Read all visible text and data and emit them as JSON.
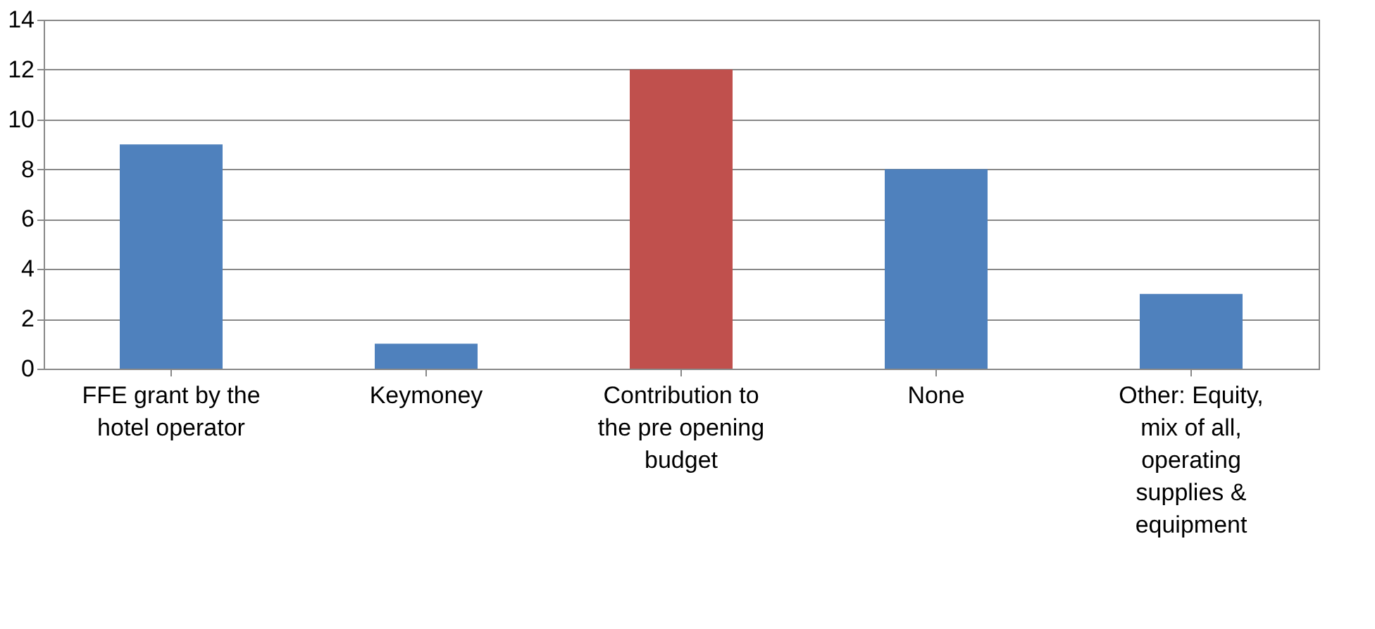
{
  "chart_data": {
    "type": "bar",
    "categories": [
      "FFE grant by the hotel operator",
      "Keymoney",
      "Contribution to the pre opening budget",
      "None",
      "Other: Equity, mix of all, operating supplies & equipment"
    ],
    "values": [
      9,
      1,
      12,
      8,
      3
    ],
    "colors": [
      "#4f81bd",
      "#4f81bd",
      "#c0504d",
      "#4f81bd",
      "#4f81bd"
    ],
    "ylim": [
      0,
      14
    ],
    "yticks": [
      0,
      2,
      4,
      6,
      8,
      10,
      12,
      14
    ],
    "grid": "y"
  }
}
